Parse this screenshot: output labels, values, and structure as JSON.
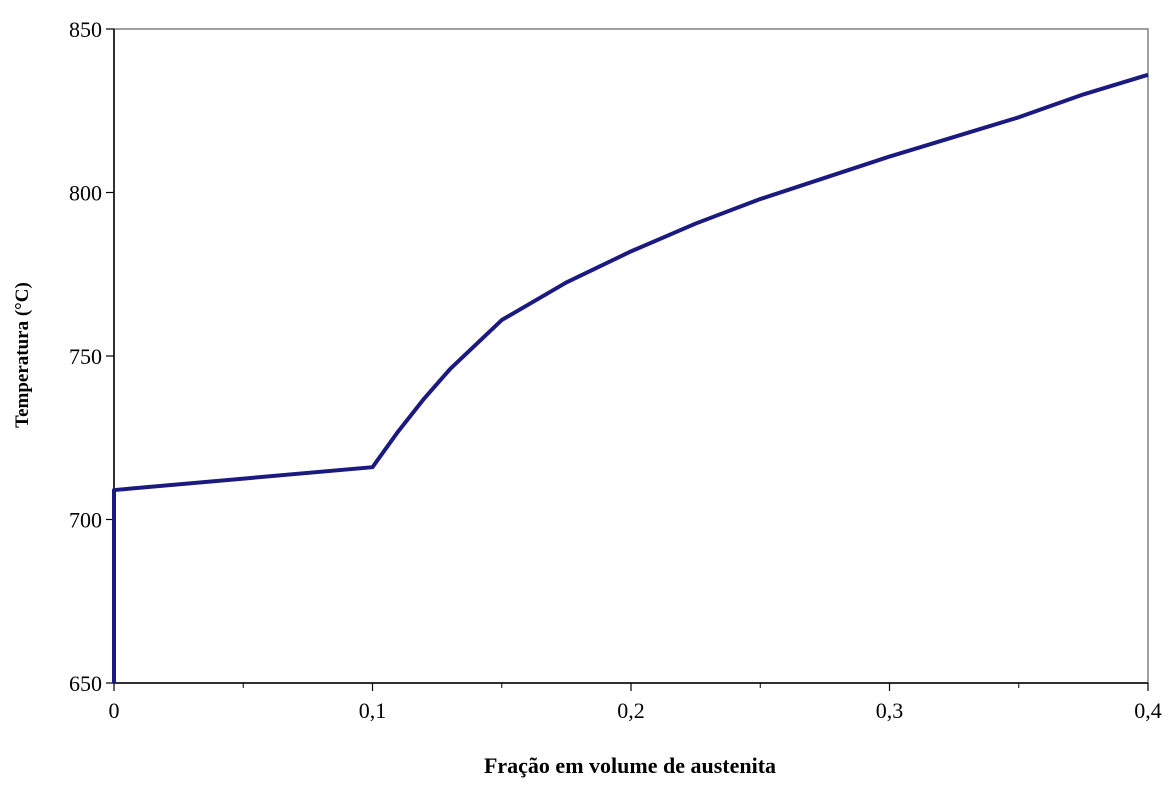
{
  "chart_data": {
    "type": "line",
    "title": "",
    "xlabel": "Fração em volume de austenita",
    "ylabel": "Temperatura (°C)",
    "xlim": [
      0,
      0.4
    ],
    "ylim": [
      650,
      850
    ],
    "x_ticks": [
      {
        "value": 0,
        "label": "0"
      },
      {
        "value": 0.1,
        "label": "0,1"
      },
      {
        "value": 0.2,
        "label": "0,2"
      },
      {
        "value": 0.3,
        "label": "0,3"
      },
      {
        "value": 0.4,
        "label": "0,4"
      }
    ],
    "x_minor_ticks": [
      0.05,
      0.15,
      0.25,
      0.35
    ],
    "y_ticks": [
      {
        "value": 650,
        "label": "650"
      },
      {
        "value": 700,
        "label": "700"
      },
      {
        "value": 750,
        "label": "750"
      },
      {
        "value": 800,
        "label": "800"
      },
      {
        "value": 850,
        "label": "850"
      }
    ],
    "grid": false,
    "legend": "none",
    "series": [
      {
        "color": "#1a1a80",
        "x": [
          0,
          0,
          0.1,
          0.11,
          0.12,
          0.13,
          0.15,
          0.175,
          0.2,
          0.225,
          0.25,
          0.275,
          0.3,
          0.325,
          0.35,
          0.375,
          0.4
        ],
        "y": [
          650,
          709,
          716,
          727,
          737,
          746,
          761,
          772.5,
          782,
          790.5,
          798,
          804.5,
          811,
          817,
          823,
          830,
          836
        ]
      }
    ]
  }
}
